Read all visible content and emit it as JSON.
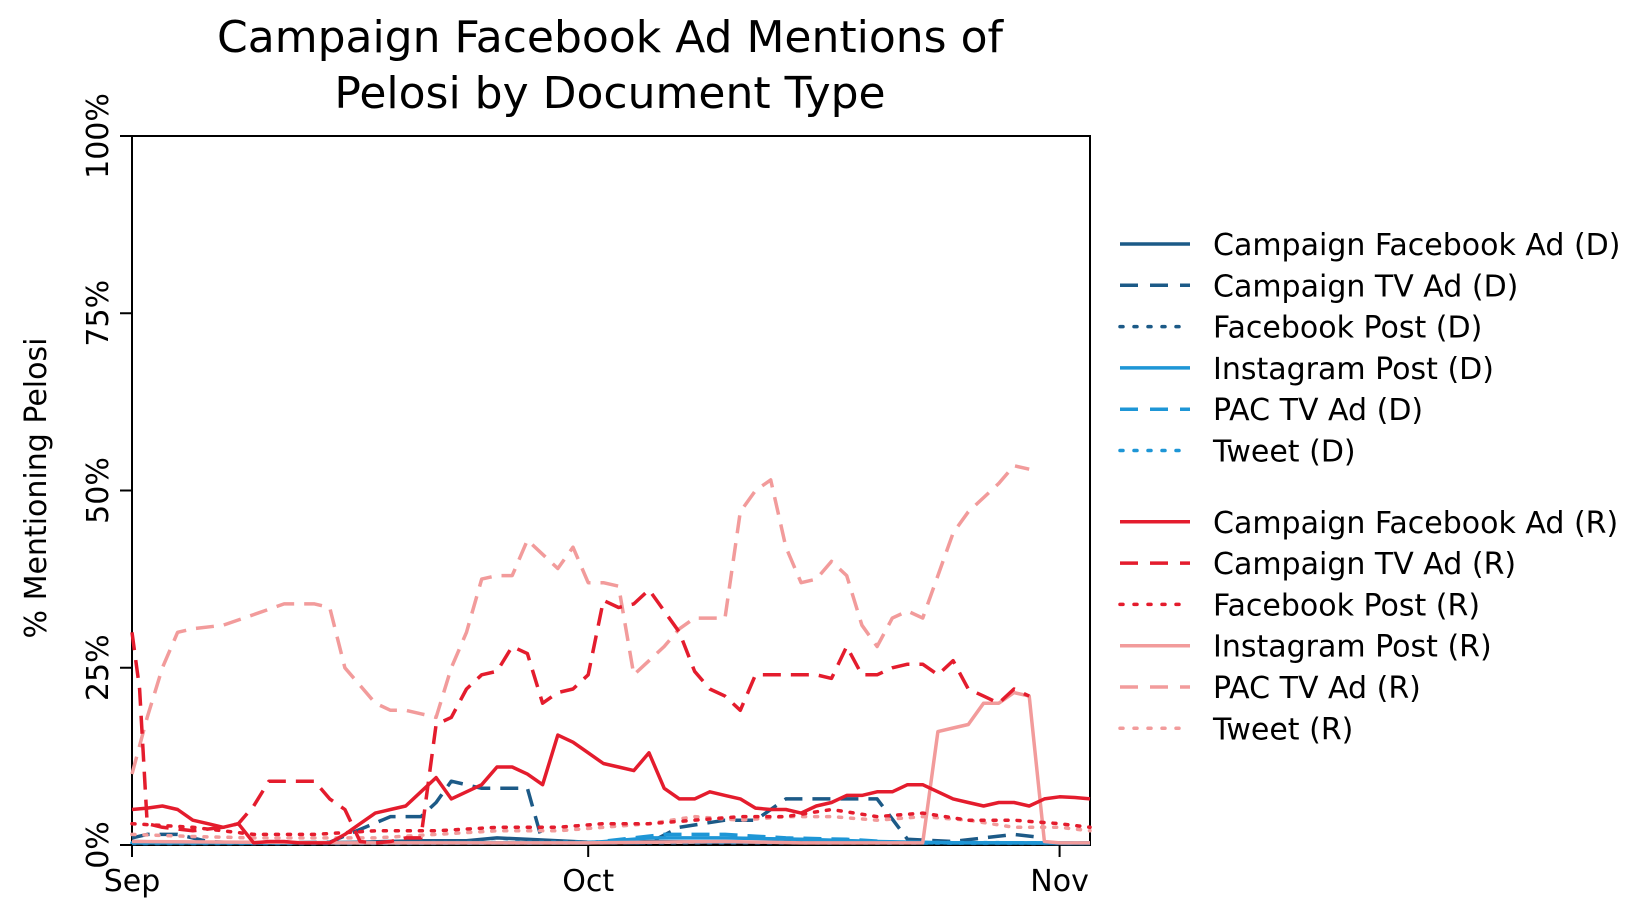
{
  "chart_data": {
    "type": "line",
    "title_line1": "Campaign Facebook Ad Mentions of",
    "title_line2": "Pelosi by Document Type",
    "xlabel": "",
    "ylabel": "% Mentioning Pelosi",
    "x_range": [
      "2018-09-01",
      "2018-11-03"
    ],
    "ylim": [
      0,
      100
    ],
    "x_ticks": [
      {
        "date": "2018-09-01",
        "label": "Sep"
      },
      {
        "date": "2018-10-01",
        "label": "Oct"
      },
      {
        "date": "2018-11-01",
        "label": "Nov"
      }
    ],
    "y_ticks": [
      {
        "value": 0,
        "label": "0%"
      },
      {
        "value": 25,
        "label": "25%"
      },
      {
        "value": 50,
        "label": "50%"
      },
      {
        "value": 75,
        "label": "75%"
      },
      {
        "value": 100,
        "label": "100%"
      }
    ],
    "grid": false,
    "legend_position": "right",
    "series": [
      {
        "name": "Campaign Facebook Ad (D)",
        "color": "#1c5a87",
        "style": "solid",
        "x": [
          "2018-09-01",
          "2018-09-04",
          "2018-09-08",
          "2018-09-12",
          "2018-09-16",
          "2018-09-20",
          "2018-09-23",
          "2018-09-25",
          "2018-09-28",
          "2018-10-01",
          "2018-10-05",
          "2018-10-09",
          "2018-10-13",
          "2018-10-17",
          "2018-10-21",
          "2018-10-25",
          "2018-10-29",
          "2018-11-01",
          "2018-11-03"
        ],
        "y": [
          0.5,
          0.4,
          0.3,
          0.3,
          0.4,
          0.6,
          0.6,
          1.0,
          0.7,
          0.4,
          0.5,
          0.4,
          0.4,
          0.5,
          0.4,
          0.3,
          0.3,
          0.2,
          0.2
        ]
      },
      {
        "name": "Campaign TV Ad (D)",
        "color": "#1c5a87",
        "style": "dashed",
        "x": [
          "2018-09-01",
          "2018-09-02",
          "2018-09-04",
          "2018-09-06",
          "2018-09-08",
          "2018-09-10",
          "2018-09-14",
          "2018-09-18",
          "2018-09-20",
          "2018-09-21",
          "2018-09-22",
          "2018-09-24",
          "2018-09-26",
          "2018-09-27",
          "2018-09-28",
          "2018-09-30",
          "2018-10-02",
          "2018-10-05",
          "2018-10-07",
          "2018-10-10",
          "2018-10-12",
          "2018-10-14",
          "2018-10-18",
          "2018-10-20",
          "2018-10-22",
          "2018-10-25",
          "2018-10-27",
          "2018-10-29",
          "2018-10-31"
        ],
        "y": [
          1.0,
          1.5,
          1.5,
          0.5,
          0.3,
          0.3,
          0.4,
          4.0,
          4.0,
          6.0,
          9.0,
          8.0,
          8.0,
          8.0,
          0.4,
          0.3,
          0.3,
          0.3,
          2.5,
          3.5,
          3.5,
          6.5,
          6.5,
          6.5,
          0.8,
          0.5,
          1.0,
          1.5,
          1.0
        ]
      },
      {
        "name": "Facebook Post (D)",
        "color": "#1c5a87",
        "style": "dotted",
        "x": [
          "2018-09-01",
          "2018-09-15",
          "2018-10-01",
          "2018-10-15",
          "2018-11-03"
        ],
        "y": [
          0.2,
          0.2,
          0.3,
          0.3,
          0.2
        ]
      },
      {
        "name": "Instagram Post (D)",
        "color": "#1e96d6",
        "style": "solid",
        "x": [
          "2018-09-01",
          "2018-09-15",
          "2018-10-01",
          "2018-10-05",
          "2018-10-10",
          "2018-10-15",
          "2018-10-20",
          "2018-10-25",
          "2018-11-03"
        ],
        "y": [
          0.3,
          0.3,
          0.3,
          1.0,
          1.0,
          0.8,
          0.5,
          0.3,
          0.3
        ]
      },
      {
        "name": "PAC TV Ad (D)",
        "color": "#1e96d6",
        "style": "dashed",
        "x": [
          "2018-09-01",
          "2018-09-15",
          "2018-10-01",
          "2018-10-06",
          "2018-10-10",
          "2018-10-14",
          "2018-10-18",
          "2018-10-22",
          "2018-11-03"
        ],
        "y": [
          0.3,
          0.3,
          0.3,
          1.5,
          1.5,
          1.0,
          0.8,
          0.3,
          0.3
        ]
      },
      {
        "name": "Tweet (D)",
        "color": "#1e96d6",
        "style": "dotted",
        "x": [
          "2018-09-01",
          "2018-09-15",
          "2018-10-01",
          "2018-10-15",
          "2018-11-03"
        ],
        "y": [
          0.3,
          0.3,
          0.4,
          0.4,
          0.3
        ]
      },
      {
        "name": "Campaign Facebook Ad (R)",
        "color": "#e41c2d",
        "style": "solid",
        "x": [
          "2018-09-01",
          "2018-09-02",
          "2018-09-03",
          "2018-09-04",
          "2018-09-05",
          "2018-09-06",
          "2018-09-07",
          "2018-09-08",
          "2018-09-09",
          "2018-09-10",
          "2018-09-11",
          "2018-09-12",
          "2018-09-13",
          "2018-09-14",
          "2018-09-15",
          "2018-09-16",
          "2018-09-17",
          "2018-09-18",
          "2018-09-19",
          "2018-09-20",
          "2018-09-21",
          "2018-09-22",
          "2018-09-23",
          "2018-09-24",
          "2018-09-25",
          "2018-09-26",
          "2018-09-27",
          "2018-09-28",
          "2018-09-29",
          "2018-09-30",
          "2018-10-01",
          "2018-10-02",
          "2018-10-03",
          "2018-10-04",
          "2018-10-05",
          "2018-10-06",
          "2018-10-07",
          "2018-10-08",
          "2018-10-09",
          "2018-10-10",
          "2018-10-11",
          "2018-10-12",
          "2018-10-13",
          "2018-10-14",
          "2018-10-15",
          "2018-10-16",
          "2018-10-17",
          "2018-10-18",
          "2018-10-19",
          "2018-10-20",
          "2018-10-21",
          "2018-10-22",
          "2018-10-23",
          "2018-10-24",
          "2018-10-25",
          "2018-10-26",
          "2018-10-27",
          "2018-10-28",
          "2018-10-29",
          "2018-10-30",
          "2018-10-31",
          "2018-11-01",
          "2018-11-02",
          "2018-11-03"
        ],
        "y": [
          5.0,
          5.2,
          5.5,
          5.0,
          3.5,
          3.0,
          2.5,
          3.0,
          0.3,
          0.5,
          0.5,
          0.3,
          0.3,
          0.3,
          1.5,
          3.0,
          4.5,
          5.0,
          5.5,
          7.5,
          9.5,
          6.5,
          7.5,
          8.5,
          11.0,
          11.0,
          10.0,
          8.5,
          15.5,
          14.5,
          13.0,
          11.5,
          11.0,
          10.5,
          13.0,
          8.0,
          6.5,
          6.5,
          7.5,
          7.0,
          6.5,
          5.2,
          5.0,
          5.0,
          4.5,
          5.5,
          6.0,
          7.0,
          7.0,
          7.5,
          7.5,
          8.5,
          8.5,
          7.5,
          6.5,
          6.0,
          5.5,
          6.0,
          6.0,
          5.5,
          6.5,
          6.8,
          6.7,
          6.5
        ]
      },
      {
        "name": "Campaign TV Ad (R)",
        "color": "#e41c2d",
        "style": "dashed",
        "x": [
          "2018-09-01",
          "2018-09-01.5",
          "2018-09-02",
          "2018-09-03",
          "2018-09-05",
          "2018-09-07",
          "2018-09-08",
          "2018-09-09",
          "2018-09-10",
          "2018-09-11",
          "2018-09-12",
          "2018-09-13",
          "2018-09-14",
          "2018-09-15",
          "2018-09-16",
          "2018-09-17",
          "2018-09-18",
          "2018-09-19",
          "2018-09-20",
          "2018-09-21",
          "2018-09-22",
          "2018-09-23",
          "2018-09-24",
          "2018-09-25",
          "2018-09-26",
          "2018-09-27",
          "2018-09-28",
          "2018-09-29",
          "2018-09-30",
          "2018-10-01",
          "2018-10-02",
          "2018-10-03",
          "2018-10-04",
          "2018-10-05",
          "2018-10-06",
          "2018-10-07",
          "2018-10-08",
          "2018-10-09",
          "2018-10-10",
          "2018-10-11",
          "2018-10-12",
          "2018-10-13",
          "2018-10-14",
          "2018-10-15",
          "2018-10-16",
          "2018-10-17",
          "2018-10-18",
          "2018-10-19",
          "2018-10-20",
          "2018-10-21",
          "2018-10-22",
          "2018-10-23",
          "2018-10-24",
          "2018-10-25",
          "2018-10-26",
          "2018-10-27",
          "2018-10-28",
          "2018-10-29",
          "2018-10-30"
        ],
        "y": [
          30.0,
          22.0,
          3.0,
          2.5,
          2.0,
          2.5,
          3.0,
          5.5,
          9.0,
          9.0,
          9.0,
          9.0,
          6.5,
          5.0,
          0.5,
          0.3,
          0.5,
          1.0,
          1.0,
          17.0,
          18.0,
          22.0,
          24.0,
          24.5,
          28.0,
          27.0,
          20.0,
          21.5,
          22.0,
          24.0,
          34.5,
          33.5,
          34.0,
          36.0,
          33.0,
          30.0,
          24.5,
          22.0,
          21.0,
          19.0,
          24.0,
          24.0,
          24.0,
          24.0,
          24.0,
          23.5,
          28.0,
          24.0,
          24.0,
          25.0,
          25.5,
          25.5,
          24.0,
          26.0,
          22.0,
          21.0,
          20.0,
          22.0,
          21.0
        ]
      },
      {
        "name": "Facebook Post (R)",
        "color": "#e41c2d",
        "style": "dotted",
        "x": [
          "2018-09-01",
          "2018-09-05",
          "2018-09-09",
          "2018-09-13",
          "2018-09-17",
          "2018-09-21",
          "2018-09-25",
          "2018-09-29",
          "2018-10-02",
          "2018-10-05",
          "2018-10-08",
          "2018-10-11",
          "2018-10-14",
          "2018-10-17",
          "2018-10-20",
          "2018-10-23",
          "2018-10-26",
          "2018-10-29",
          "2018-11-01",
          "2018-11-03"
        ],
        "y": [
          3.0,
          2.5,
          1.5,
          1.5,
          2.0,
          2.0,
          2.5,
          2.5,
          3.0,
          3.0,
          3.5,
          4.0,
          4.0,
          5.0,
          4.0,
          4.5,
          3.5,
          3.5,
          3.0,
          2.5
        ]
      },
      {
        "name": "Instagram Post (R)",
        "color": "#f29b9b",
        "style": "solid",
        "x": [
          "2018-09-01",
          "2018-09-15",
          "2018-10-01",
          "2018-10-10",
          "2018-10-15",
          "2018-10-23",
          "2018-10-24",
          "2018-10-25",
          "2018-10-26",
          "2018-10-27",
          "2018-10-28",
          "2018-10-29",
          "2018-10-30",
          "2018-10-31",
          "2018-11-01",
          "2018-11-03"
        ],
        "y": [
          0.5,
          0.3,
          0.3,
          0.5,
          0.3,
          0.3,
          16.0,
          16.5,
          17.0,
          20.0,
          20.0,
          21.5,
          21.0,
          0.5,
          0.3,
          0.3
        ]
      },
      {
        "name": "PAC TV Ad (R)",
        "color": "#f29b9b",
        "style": "dashed",
        "x": [
          "2018-09-01",
          "2018-09-02",
          "2018-09-03",
          "2018-09-04",
          "2018-09-05",
          "2018-09-07",
          "2018-09-09",
          "2018-09-11",
          "2018-09-13",
          "2018-09-14",
          "2018-09-15",
          "2018-09-17",
          "2018-09-18",
          "2018-09-19",
          "2018-09-20",
          "2018-09-21",
          "2018-09-22",
          "2018-09-23",
          "2018-09-24",
          "2018-09-25",
          "2018-09-26",
          "2018-09-27",
          "2018-09-28",
          "2018-09-29",
          "2018-09-30",
          "2018-10-01",
          "2018-10-02",
          "2018-10-03",
          "2018-10-04",
          "2018-10-05",
          "2018-10-06",
          "2018-10-07",
          "2018-10-08",
          "2018-10-09",
          "2018-10-10",
          "2018-10-11",
          "2018-10-12",
          "2018-10-13",
          "2018-10-14",
          "2018-10-15",
          "2018-10-16",
          "2018-10-17",
          "2018-10-18",
          "2018-10-19",
          "2018-10-20",
          "2018-10-21",
          "2018-10-22",
          "2018-10-23",
          "2018-10-24",
          "2018-10-25",
          "2018-10-26",
          "2018-10-27",
          "2018-10-28",
          "2018-10-29",
          "2018-10-30"
        ],
        "y": [
          10.0,
          18.0,
          25.0,
          30.0,
          30.5,
          31.0,
          32.5,
          34.0,
          34.0,
          33.5,
          25.0,
          20.0,
          19.0,
          19.0,
          18.5,
          18.0,
          25.0,
          30.0,
          37.5,
          38.0,
          38.0,
          43.0,
          41.0,
          39.0,
          42.0,
          37.0,
          37.0,
          36.5,
          24.0,
          26.0,
          28.0,
          30.5,
          32.0,
          32.0,
          32.0,
          47.0,
          50.0,
          51.5,
          42.0,
          37.0,
          37.5,
          40.0,
          38.0,
          31.0,
          28.0,
          32.0,
          33.0,
          32.0,
          38.0,
          44.0,
          47.0,
          49.0,
          51.0,
          53.5,
          53.0
        ]
      },
      {
        "name": "Tweet (R)",
        "color": "#f29b9b",
        "style": "dotted",
        "x": [
          "2018-09-01",
          "2018-09-05",
          "2018-09-09",
          "2018-09-13",
          "2018-09-17",
          "2018-09-21",
          "2018-09-25",
          "2018-09-29",
          "2018-10-02",
          "2018-10-05",
          "2018-10-08",
          "2018-10-11",
          "2018-10-14",
          "2018-10-17",
          "2018-10-20",
          "2018-10-23",
          "2018-10-26",
          "2018-10-29",
          "2018-11-01",
          "2018-11-03"
        ],
        "y": [
          1.5,
          1.2,
          1.0,
          1.0,
          1.0,
          1.5,
          2.0,
          2.0,
          2.5,
          3.0,
          4.0,
          3.5,
          4.0,
          4.0,
          3.5,
          4.0,
          3.5,
          2.5,
          2.5,
          2.0
        ]
      }
    ]
  }
}
